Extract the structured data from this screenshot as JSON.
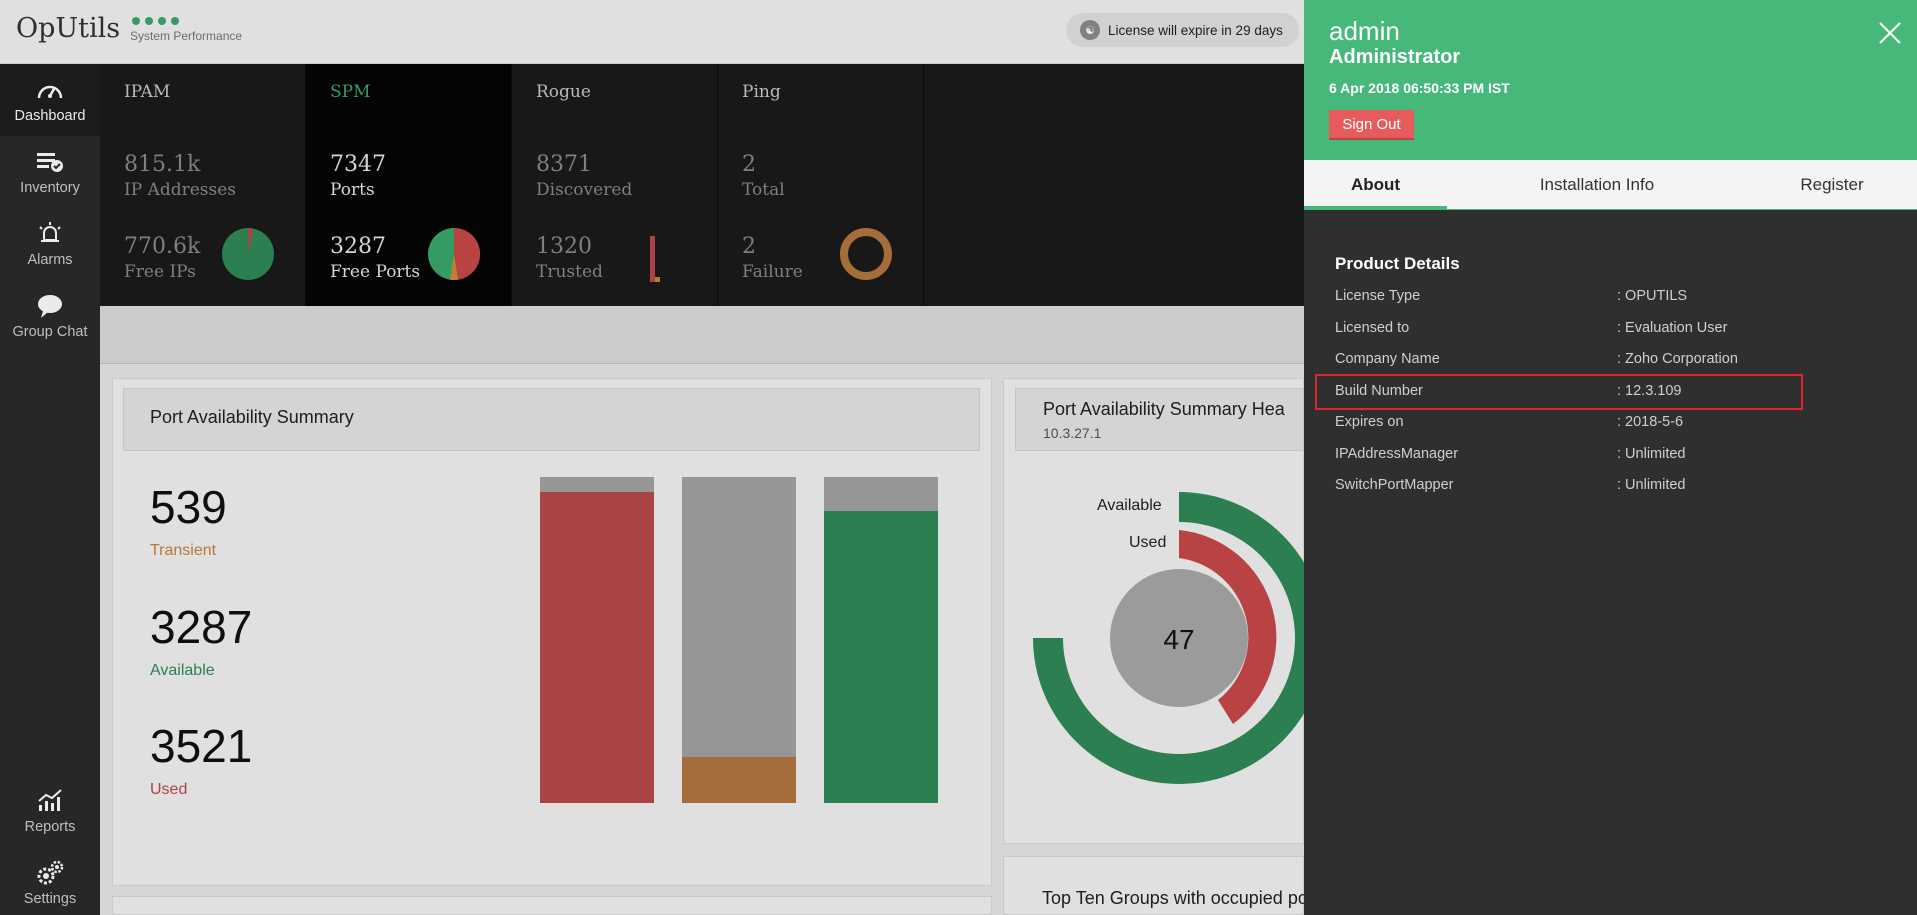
{
  "header": {
    "app_name": "OpUtils",
    "app_subtitle": "System Performance",
    "license_text": "License will expire in 29 days"
  },
  "sidebar": {
    "items": [
      {
        "label": "Dashboard",
        "icon": "dashboard-gauge-icon",
        "active": true
      },
      {
        "label": "Inventory",
        "icon": "inventory-list-icon"
      },
      {
        "label": "Alarms",
        "icon": "alarm-bell-icon"
      },
      {
        "label": "Group Chat",
        "icon": "chat-bubble-icon"
      },
      {
        "label": "Reports",
        "icon": "reports-chart-icon"
      },
      {
        "label": "Settings",
        "icon": "settings-gears-icon"
      }
    ]
  },
  "stats": [
    {
      "title": "IPAM",
      "value1": "815.1k",
      "label1": "IP Addresses",
      "value2": "770.6k",
      "label2": "Free IPs"
    },
    {
      "title": "SPM",
      "value1": "7347",
      "label1": "Ports",
      "value2": "3287",
      "label2": "Free Ports"
    },
    {
      "title": "Rogue",
      "value1": "8371",
      "label1": "Discovered",
      "value2": "1320",
      "label2": "Trusted"
    },
    {
      "title": "Ping",
      "value1": "2",
      "label1": "Total",
      "value2": "2",
      "label2": "Failure"
    }
  ],
  "port_summary": {
    "title": "Port Availability Summary",
    "transient_value": "539",
    "transient_label": "Transient",
    "available_value": "3287",
    "available_label": "Available",
    "used_value": "3521",
    "used_label": "Used"
  },
  "port_health": {
    "title": "Port Availability Summary Hea",
    "ip": "10.3.27.1",
    "available_label": "Available",
    "used_label": "Used",
    "center_value": "47"
  },
  "top_ten": {
    "title": "Top Ten Groups with occupied ports"
  },
  "drawer": {
    "user": "admin",
    "role": "Administrator",
    "timestamp": "6 Apr 2018 06:50:33 PM IST",
    "sign_out_label": "Sign Out",
    "tabs": [
      "About",
      "Installation Info",
      "Register"
    ],
    "section_title": "Product Details",
    "details": [
      {
        "key": "License Type",
        "value": ": OPUTILS"
      },
      {
        "key": "Licensed to",
        "value": ": Evaluation User"
      },
      {
        "key": "Company Name",
        "value": ": Zoho Corporation"
      },
      {
        "key": "Build Number",
        "value": ": 12.3.109"
      },
      {
        "key": "Expires on",
        "value": ": 2018-5-6"
      },
      {
        "key": "IPAddressManager",
        "value": ": Unlimited"
      },
      {
        "key": "SwitchPortMapper",
        "value": ": Unlimited"
      }
    ]
  },
  "colors": {
    "accent_green": "#45b87a",
    "red": "#b94a4a",
    "orange": "#c8843f",
    "gray": "#a3a3a3",
    "sign_out": "#e65b5b"
  }
}
